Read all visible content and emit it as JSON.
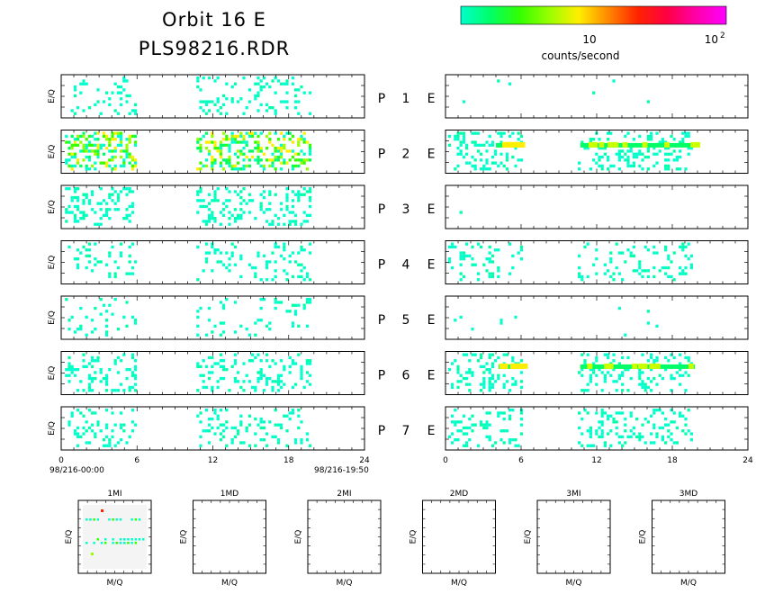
{
  "header": {
    "title_line1": "Orbit 16 E",
    "title_line2": "PLS98216.RDR"
  },
  "colorbar": {
    "stops": [
      "#00ffcc",
      "#00ff66",
      "#33ff00",
      "#99ff00",
      "#ffee00",
      "#ff8800",
      "#ff2200",
      "#ff0044",
      "#ff00aa",
      "#ff00ff"
    ],
    "tick_mid": "10",
    "tick_max_base": "10",
    "tick_max_exp": "2",
    "label": "counts/second"
  },
  "axis": {
    "ylabel": "E/Q",
    "xticks": [
      "0",
      "6",
      "12",
      "18",
      "24"
    ],
    "start_stamp": "98/216-00:00",
    "end_stamp": "98/216-19:50",
    "xlim": [
      0,
      24
    ]
  },
  "panels": {
    "E_label": "E",
    "P_label": "P",
    "rows": [
      {
        "num": "1"
      },
      {
        "num": "2"
      },
      {
        "num": "3"
      },
      {
        "num": "4"
      },
      {
        "num": "5"
      },
      {
        "num": "6"
      },
      {
        "num": "7"
      }
    ]
  },
  "chart_data": {
    "type": "heatmap",
    "x_unit": "hours",
    "xlim": [
      0,
      24
    ],
    "left_column_active_intervals_hours": [
      [
        0.3,
        6.2
      ],
      [
        10.7,
        19.9
      ]
    ],
    "right_column_active_intervals_hours": [
      [
        0.2,
        6.2
      ],
      [
        10.5,
        19.8
      ]
    ],
    "rows": [
      {
        "num": "1",
        "left_density": 0.16,
        "right_density": 0.004
      },
      {
        "num": "2",
        "left_density": 0.42,
        "right_density": 0.22,
        "right_band_hours": [
          [
            10.7,
            19.8
          ],
          [
            4.0,
            6.2
          ]
        ]
      },
      {
        "num": "3",
        "left_density": 0.24,
        "right_density": 0.003
      },
      {
        "num": "4",
        "left_density": 0.14,
        "right_density": 0.18
      },
      {
        "num": "5",
        "left_density": 0.1,
        "right_density": 0.012
      },
      {
        "num": "6",
        "left_density": 0.22,
        "right_density": 0.22,
        "right_band_hours": [
          [
            10.7,
            19.8
          ],
          [
            4.2,
            6.2
          ]
        ]
      },
      {
        "num": "7",
        "left_density": 0.18,
        "right_density": 0.2
      }
    ]
  },
  "small_panels": [
    {
      "title": "1MI",
      "ylabel": "E/Q",
      "xlabel": "M/Q",
      "has_data": true
    },
    {
      "title": "1MD",
      "ylabel": "E/Q",
      "xlabel": "M/Q",
      "has_data": false
    },
    {
      "title": "2MI",
      "ylabel": "E/Q",
      "xlabel": "M/Q",
      "has_data": false
    },
    {
      "title": "2MD",
      "ylabel": "E/Q",
      "xlabel": "M/Q",
      "has_data": false
    },
    {
      "title": "3MI",
      "ylabel": "E/Q",
      "xlabel": "M/Q",
      "has_data": false
    },
    {
      "title": "3MD",
      "ylabel": "E/Q",
      "xlabel": "M/Q",
      "has_data": false
    }
  ]
}
